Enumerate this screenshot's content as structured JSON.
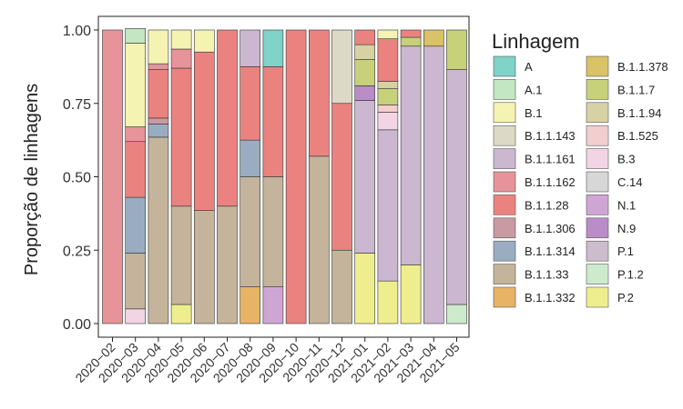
{
  "chart_data": {
    "type": "bar",
    "stacked": true,
    "title": "",
    "xlabel": "",
    "ylabel": "Proporção de linhagens",
    "ylim": [
      0,
      1
    ],
    "yticks": [
      "0.00",
      "0.25",
      "0.50",
      "0.75",
      "1.00"
    ],
    "categories": [
      "2020−02",
      "2020−03",
      "2020−04",
      "2020−05",
      "2020−06",
      "2020−07",
      "2020−08",
      "2020−09",
      "2020−10",
      "2020−11",
      "2020−12",
      "2021−01",
      "2021−02",
      "2021−03",
      "2021−04",
      "2021−05"
    ],
    "legend": {
      "title": "Linhagem",
      "placement": "right",
      "entries": [
        {
          "name": "A",
          "color": "#7fd3c8"
        },
        {
          "name": "A.1",
          "color": "#c3e6c3"
        },
        {
          "name": "B.1",
          "color": "#f5f3b2"
        },
        {
          "name": "B.1.1.143",
          "color": "#dcd9c6"
        },
        {
          "name": "B.1.1.161",
          "color": "#cbb7cf"
        },
        {
          "name": "B.1.1.162",
          "color": "#e6949a"
        },
        {
          "name": "B.1.1.28",
          "color": "#ea8380"
        },
        {
          "name": "B.1.1.306",
          "color": "#c99aa2"
        },
        {
          "name": "B.1.1.314",
          "color": "#99acc2"
        },
        {
          "name": "B.1.1.33",
          "color": "#c3b49b"
        },
        {
          "name": "B.1.1.332",
          "color": "#e8b365"
        },
        {
          "name": "B.1.1.378",
          "color": "#d9c267"
        },
        {
          "name": "B.1.1.7",
          "color": "#c6d17a"
        },
        {
          "name": "B.1.1.94",
          "color": "#d7d2a4"
        },
        {
          "name": "B.1.525",
          "color": "#f3cece"
        },
        {
          "name": "B.3",
          "color": "#f3d4e4"
        },
        {
          "name": "C.14",
          "color": "#d7d7d7"
        },
        {
          "name": "N.1",
          "color": "#cfa6d3"
        },
        {
          "name": "N.9",
          "color": "#ba8cc8"
        },
        {
          "name": "P.1",
          "color": "#cdbccb"
        },
        {
          "name": "P.1.2",
          "color": "#cdebcc"
        },
        {
          "name": "P.2",
          "color": "#eeee8e"
        }
      ]
    },
    "stacks": [
      [
        [
          "B.1.1.162",
          1.0
        ]
      ],
      [
        [
          "B.3",
          0.05
        ],
        [
          "B.1.1.33",
          0.19
        ],
        [
          "B.1.1.314",
          0.19
        ],
        [
          "B.1.1.28",
          0.19
        ],
        [
          "B.1.1.162",
          0.05
        ],
        [
          "B.1",
          0.285
        ],
        [
          "A.1",
          0.05
        ]
      ],
      [
        [
          "B.1.1.33",
          0.635
        ],
        [
          "B.1.1.314",
          0.045
        ],
        [
          "B.1.1.306",
          0.02
        ],
        [
          "B.1.1.28",
          0.165
        ],
        [
          "B.1.1.162",
          0.02
        ],
        [
          "B.1",
          0.115
        ]
      ],
      [
        [
          "P.2",
          0.065
        ],
        [
          "B.1.1.33",
          0.335
        ],
        [
          "B.1.1.28",
          0.47
        ],
        [
          "B.1.1.162",
          0.065
        ],
        [
          "B.1",
          0.065
        ]
      ],
      [
        [
          "B.1.1.33",
          0.385
        ],
        [
          "B.1.1.28",
          0.54
        ],
        [
          "B.1",
          0.075
        ]
      ],
      [
        [
          "B.1.1.33",
          0.4
        ],
        [
          "B.1.1.28",
          0.6
        ]
      ],
      [
        [
          "B.1.1.332",
          0.125
        ],
        [
          "B.1.1.33",
          0.375
        ],
        [
          "B.1.1.314",
          0.125
        ],
        [
          "B.1.1.28",
          0.25
        ],
        [
          "B.1.1.161",
          0.125
        ]
      ],
      [
        [
          "N.1",
          0.125
        ],
        [
          "B.1.1.33",
          0.375
        ],
        [
          "B.1.1.28",
          0.375
        ],
        [
          "A",
          0.125
        ]
      ],
      [
        [
          "B.1.1.28",
          1.0
        ]
      ],
      [
        [
          "B.1.1.33",
          0.57
        ],
        [
          "B.1.1.28",
          0.43
        ]
      ],
      [
        [
          "B.1.1.33",
          0.25
        ],
        [
          "B.1.1.28",
          0.5
        ],
        [
          "B.1.1.143",
          0.25
        ]
      ],
      [
        [
          "P.2",
          0.24
        ],
        [
          "B.1.1.161",
          0.52
        ],
        [
          "N.9",
          0.05
        ],
        [
          "B.1.1.7",
          0.09
        ],
        [
          "B.1.1.94",
          0.05
        ],
        [
          "B.1.1.28",
          0.05
        ]
      ],
      [
        [
          "P.2",
          0.145
        ],
        [
          "B.1.1.161",
          0.515
        ],
        [
          "B.3",
          0.06
        ],
        [
          "B.1.525",
          0.025
        ],
        [
          "B.1.1.7",
          0.055
        ],
        [
          "B.1.1.94",
          0.025
        ],
        [
          "B.1.1.28",
          0.145
        ],
        [
          "B.1",
          0.03
        ]
      ],
      [
        [
          "P.2",
          0.2
        ],
        [
          "B.1.1.161",
          0.745
        ],
        [
          "B.1.1.7",
          0.03
        ],
        [
          "B.1.1.28",
          0.025
        ]
      ],
      [
        [
          "B.1.1.161",
          0.945
        ],
        [
          "B.1.1.378",
          0.055
        ]
      ],
      [
        [
          "P.1.2",
          0.065
        ],
        [
          "B.1.1.161",
          0.8
        ],
        [
          "B.1.1.7",
          0.135
        ]
      ]
    ]
  }
}
